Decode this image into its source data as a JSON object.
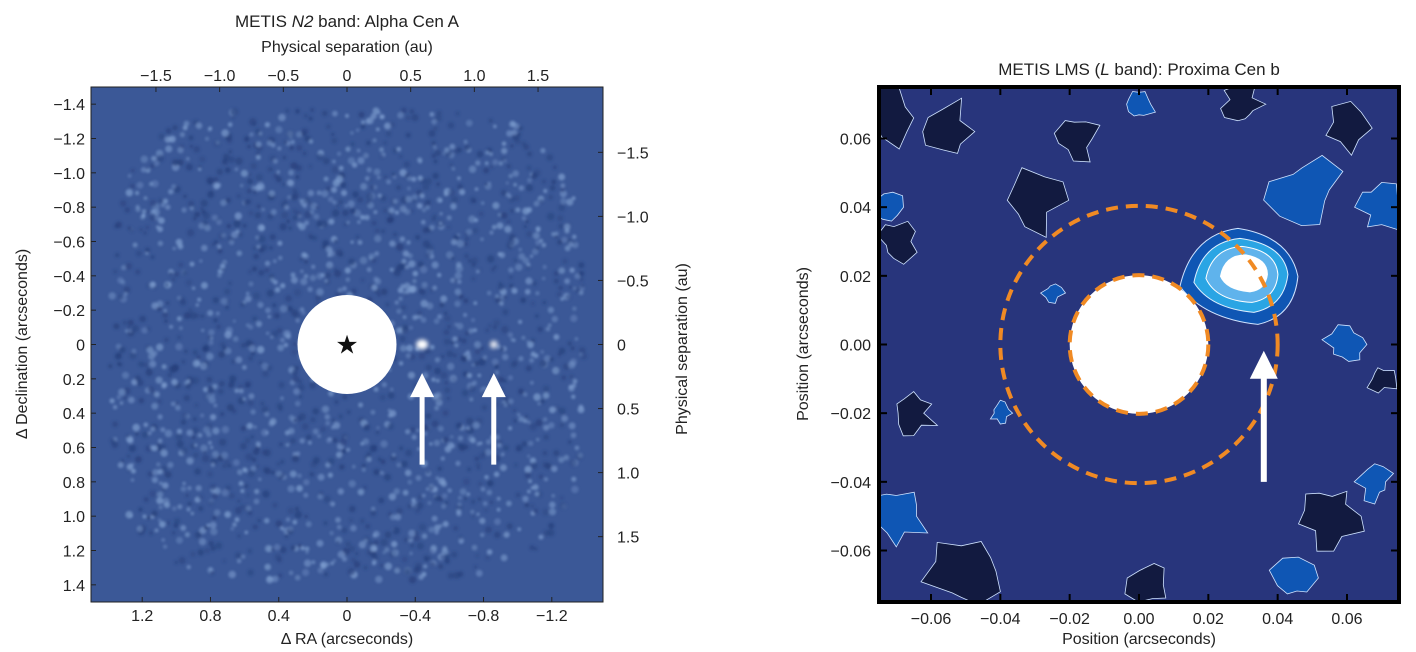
{
  "colors": {
    "left_background": "#3b5897",
    "left_speckle_light": "#7f9fd0",
    "left_speckle_dark": "#26407c",
    "right_background": "#28357c",
    "right_level_dark": "#121a40",
    "right_level_mid": "#0f56b4",
    "right_level_light": "#5fb3ec",
    "right_level_lighter": "#2aa5e4",
    "peak": "#ffffff",
    "dashed_circle": "#f08a24",
    "arrow": "#ffffff",
    "mask": "#ffffff"
  },
  "chart_data": [
    {
      "type": "heatmap",
      "title_parts": [
        "METIS ",
        "N2",
        " band: Alpha Cen A"
      ],
      "top_xlabel": "Physical separation (au)",
      "xlabel": "Δ RA (arcseconds)",
      "ylabel": "Δ Declination (arcseconds)",
      "right_ylabel": "Physical separation (au)",
      "xlim": [
        1.5,
        -1.5
      ],
      "ylim": [
        -1.5,
        1.5
      ],
      "x_ticks": [
        1.2,
        0.8,
        0.4,
        0,
        -0.4,
        -0.8,
        -1.2
      ],
      "x_tick_labels": [
        "1.2",
        "0.8",
        "0.4",
        "0",
        "−0.4",
        "−0.8",
        "−1.2"
      ],
      "y_ticks": [
        -1.4,
        -1.2,
        -1.0,
        -0.8,
        -0.6,
        -0.4,
        -0.2,
        0,
        0.2,
        0.4,
        0.6,
        0.8,
        1.0,
        1.2,
        1.4
      ],
      "y_tick_labels": [
        "−1.4",
        "−1.2",
        "−1.0",
        "−0.8",
        "−0.6",
        "−0.4",
        "−0.2",
        "0",
        "0.2",
        "0.4",
        "0.6",
        "0.8",
        "1.0",
        "1.2",
        "1.4"
      ],
      "top_ticks_au": [
        -1.5,
        -1.0,
        -0.5,
        0,
        0.5,
        1.0,
        1.5
      ],
      "top_tick_labels": [
        "−1.5",
        "−1.0",
        "−0.5",
        "0",
        "0.5",
        "1.0",
        "1.5"
      ],
      "right_ticks_au": [
        -1.5,
        -1.0,
        -0.5,
        0,
        0.5,
        1.0,
        1.5
      ],
      "right_tick_labels": [
        "−1.5",
        "−1.0",
        "−0.5",
        "0",
        "0.5",
        "1.0",
        "1.5"
      ],
      "star_symbol": "★",
      "star_mask_radius_arcsec": 0.25,
      "planets": [
        {
          "x": -0.44,
          "y": 0.0,
          "bright": true
        },
        {
          "x": -0.86,
          "y": 0.0,
          "bright": false
        }
      ],
      "arrows": [
        {
          "x": -0.44,
          "y_tail": 0.7,
          "y_head": 0.19
        },
        {
          "x": -0.86,
          "y_tail": 0.7,
          "y_head": 0.19
        }
      ]
    },
    {
      "type": "heatmap",
      "title_parts": [
        "METIS LMS (",
        "L",
        " band): Proxima Cen b"
      ],
      "xlabel": "Position (arcseconds)",
      "ylabel": "Position (arcseconds)",
      "xlim": [
        -0.075,
        0.075
      ],
      "ylim": [
        -0.075,
        0.075
      ],
      "x_ticks": [
        -0.06,
        -0.04,
        -0.02,
        0.0,
        0.02,
        0.04,
        0.06
      ],
      "x_tick_labels": [
        "−0.06",
        "−0.04",
        "−0.02",
        "0.00",
        "0.02",
        "0.04",
        "0.06"
      ],
      "y_ticks": [
        0.06,
        0.04,
        0.02,
        0.0,
        -0.02,
        -0.04,
        -0.06
      ],
      "y_tick_labels": [
        "0.06",
        "0.04",
        "0.02",
        "0.00",
        "−0.02",
        "−0.04",
        "−0.06"
      ],
      "mask_radius": 0.02,
      "dashed_circles": [
        0.02,
        0.04
      ],
      "planet": {
        "x": 0.032,
        "y": 0.021
      },
      "arrow": {
        "x": 0.036,
        "y_tail": -0.04,
        "y_head": -0.003
      }
    }
  ]
}
